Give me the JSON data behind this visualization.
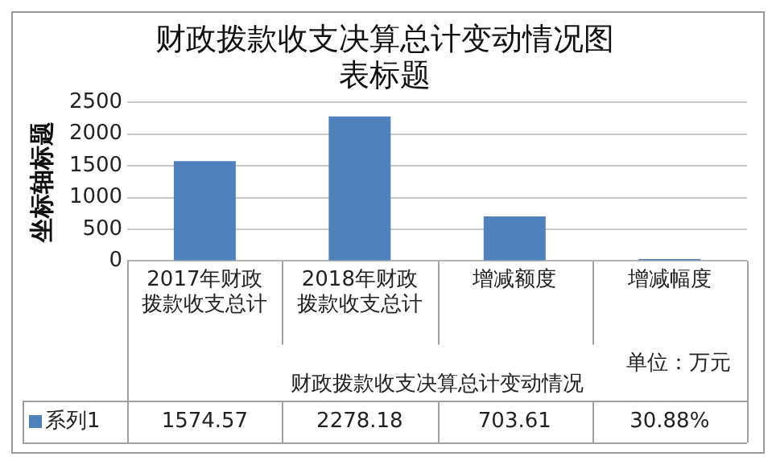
{
  "chart_data": {
    "type": "bar",
    "title": "财政拨款收支决算总计变动情况图表标题",
    "ylabel": "坐标轴标题",
    "xlabel": "财政拨款收支决算总计变动情况",
    "categories": [
      "2017年财政拨款收支总计",
      "2018年财政拨款收支总计",
      "增减额度",
      "增减幅度"
    ],
    "series": [
      {
        "name": "系列1",
        "color": "#4f81bd",
        "values": [
          1574.57,
          2278.18,
          703.61,
          30.88
        ],
        "value_labels": [
          "1574.57",
          "2278.18",
          "703.61",
          "30.88%"
        ]
      }
    ],
    "ylim": [
      0,
      2500
    ],
    "yticks": [
      0,
      500,
      1000,
      1500,
      2000,
      2500
    ],
    "grid": "y",
    "annotations": [
      "单位：万元"
    ]
  }
}
